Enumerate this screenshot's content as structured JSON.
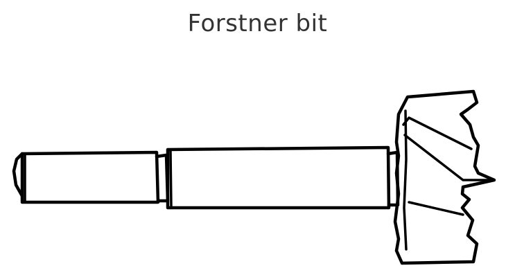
{
  "diagram": {
    "title": "Forstner bit",
    "line_color": "#000000",
    "title_color": "#333333",
    "background": "#ffffff"
  }
}
